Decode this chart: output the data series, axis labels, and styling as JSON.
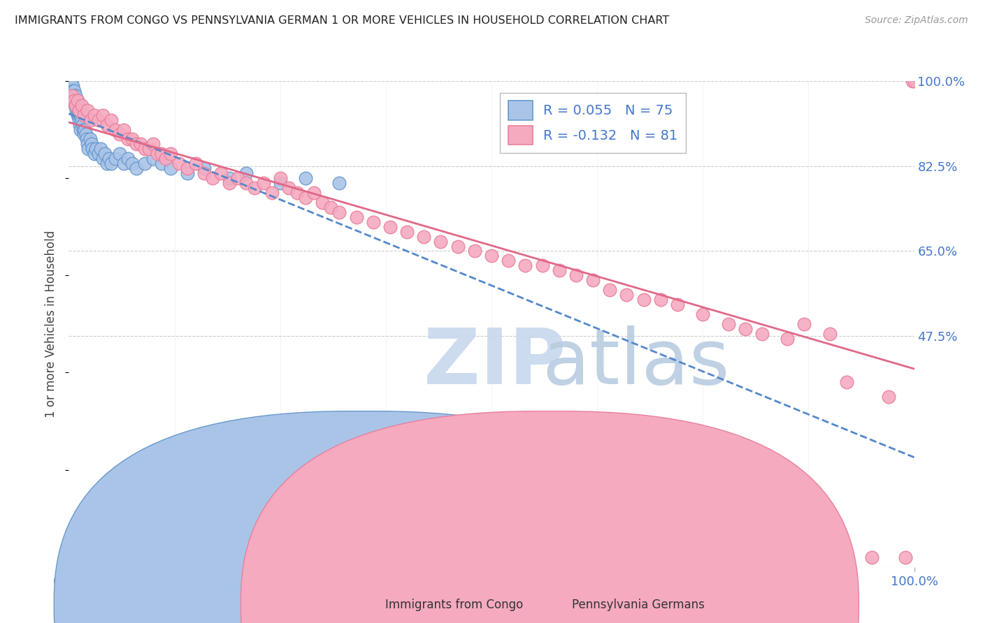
{
  "title": "IMMIGRANTS FROM CONGO VS PENNSYLVANIA GERMAN 1 OR MORE VEHICLES IN HOUSEHOLD CORRELATION CHART",
  "source": "Source: ZipAtlas.com",
  "ylabel": "1 or more Vehicles in Household",
  "legend_label_1": "Immigrants from Congo",
  "legend_label_2": "Pennsylvania Germans",
  "r1": 0.055,
  "n1": 75,
  "r2": -0.132,
  "n2": 81,
  "color1": "#aac4e8",
  "color2": "#f5aac0",
  "edge_color1": "#6699cc",
  "edge_color2": "#e8809a",
  "line_color1": "#5588cc",
  "line_color2": "#e06888",
  "watermark_zip_color": "#c8d8ee",
  "watermark_atlas_color": "#b8cce0",
  "background_color": "#ffffff",
  "grid_color": "#cccccc",
  "tick_color": "#4477cc",
  "title_color": "#222222",
  "ylabel_color": "#444444",
  "source_color": "#999999",
  "xlim": [
    0.0,
    1.0
  ],
  "ylim": [
    0.0,
    1.0
  ],
  "ytick_vals": [
    1.0,
    0.825,
    0.65,
    0.475
  ],
  "ytick_labels": [
    "100.0%",
    "82.5%",
    "65.0%",
    "47.5%"
  ],
  "xtick_vals": [
    0.0,
    1.0
  ],
  "xtick_labels": [
    "0.0%",
    "100.0%"
  ],
  "congo_x": [
    0.002,
    0.002,
    0.003,
    0.003,
    0.003,
    0.004,
    0.004,
    0.004,
    0.005,
    0.005,
    0.005,
    0.005,
    0.006,
    0.006,
    0.006,
    0.007,
    0.007,
    0.007,
    0.008,
    0.008,
    0.008,
    0.009,
    0.009,
    0.009,
    0.01,
    0.01,
    0.01,
    0.01,
    0.011,
    0.011,
    0.011,
    0.012,
    0.012,
    0.013,
    0.013,
    0.014,
    0.014,
    0.015,
    0.016,
    0.017,
    0.018,
    0.019,
    0.02,
    0.021,
    0.022,
    0.023,
    0.025,
    0.027,
    0.028,
    0.03,
    0.032,
    0.035,
    0.038,
    0.04,
    0.043,
    0.045,
    0.048,
    0.05,
    0.055,
    0.06,
    0.065,
    0.07,
    0.075,
    0.08,
    0.09,
    0.1,
    0.11,
    0.12,
    0.14,
    0.16,
    0.19,
    0.21,
    0.25,
    0.28,
    0.32
  ],
  "congo_y": [
    1.0,
    0.99,
    1.0,
    0.99,
    0.98,
    0.99,
    0.98,
    0.97,
    0.99,
    0.98,
    0.97,
    0.96,
    0.98,
    0.97,
    0.96,
    0.97,
    0.96,
    0.95,
    0.97,
    0.96,
    0.95,
    0.96,
    0.95,
    0.94,
    0.96,
    0.95,
    0.94,
    0.93,
    0.95,
    0.94,
    0.93,
    0.94,
    0.92,
    0.93,
    0.91,
    0.93,
    0.9,
    0.92,
    0.91,
    0.9,
    0.89,
    0.9,
    0.89,
    0.88,
    0.87,
    0.86,
    0.88,
    0.87,
    0.86,
    0.85,
    0.86,
    0.85,
    0.86,
    0.84,
    0.85,
    0.83,
    0.84,
    0.83,
    0.84,
    0.85,
    0.83,
    0.84,
    0.83,
    0.82,
    0.83,
    0.84,
    0.83,
    0.82,
    0.81,
    0.82,
    0.8,
    0.81,
    0.79,
    0.8,
    0.79
  ],
  "pa_x": [
    0.004,
    0.006,
    0.008,
    0.01,
    0.012,
    0.015,
    0.018,
    0.022,
    0.026,
    0.03,
    0.035,
    0.04,
    0.045,
    0.05,
    0.055,
    0.06,
    0.065,
    0.07,
    0.075,
    0.08,
    0.085,
    0.09,
    0.095,
    0.1,
    0.105,
    0.11,
    0.115,
    0.12,
    0.13,
    0.14,
    0.15,
    0.16,
    0.17,
    0.18,
    0.19,
    0.2,
    0.21,
    0.22,
    0.23,
    0.24,
    0.25,
    0.26,
    0.27,
    0.28,
    0.29,
    0.3,
    0.31,
    0.32,
    0.34,
    0.36,
    0.38,
    0.4,
    0.42,
    0.44,
    0.46,
    0.48,
    0.5,
    0.52,
    0.54,
    0.56,
    0.58,
    0.6,
    0.62,
    0.64,
    0.66,
    0.68,
    0.7,
    0.72,
    0.75,
    0.78,
    0.8,
    0.82,
    0.85,
    0.87,
    0.9,
    0.92,
    0.95,
    0.97,
    0.99,
    0.998,
    1.0
  ],
  "pa_y": [
    0.97,
    0.96,
    0.95,
    0.96,
    0.94,
    0.95,
    0.93,
    0.94,
    0.92,
    0.93,
    0.92,
    0.93,
    0.91,
    0.92,
    0.9,
    0.89,
    0.9,
    0.88,
    0.88,
    0.87,
    0.87,
    0.86,
    0.86,
    0.87,
    0.85,
    0.85,
    0.84,
    0.85,
    0.83,
    0.82,
    0.83,
    0.81,
    0.8,
    0.81,
    0.79,
    0.8,
    0.79,
    0.78,
    0.79,
    0.77,
    0.8,
    0.78,
    0.77,
    0.76,
    0.77,
    0.75,
    0.74,
    0.73,
    0.72,
    0.71,
    0.7,
    0.69,
    0.68,
    0.67,
    0.66,
    0.65,
    0.64,
    0.63,
    0.62,
    0.62,
    0.61,
    0.6,
    0.59,
    0.57,
    0.56,
    0.55,
    0.55,
    0.54,
    0.52,
    0.5,
    0.49,
    0.48,
    0.47,
    0.5,
    0.48,
    0.38,
    0.02,
    0.35,
    0.02,
    1.0,
    1.0
  ]
}
